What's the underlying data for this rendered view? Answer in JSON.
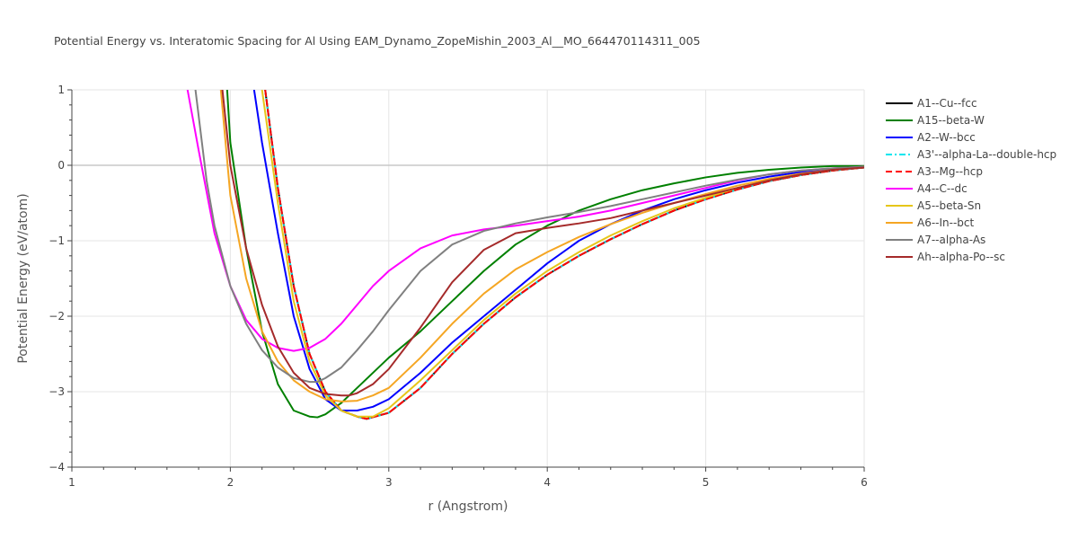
{
  "chart_data": {
    "type": "line",
    "title": "Potential Energy vs. Interatomic Spacing for Al Using EAM_Dynamo_ZopeMishin_2003_Al__MO_664470114311_005",
    "xlabel": "r (Angstrom)",
    "ylabel": "Potential Energy (eV/atom)",
    "xlim": [
      1,
      6
    ],
    "ylim": [
      -4,
      1
    ],
    "xticks": [
      1,
      2,
      3,
      4,
      5,
      6
    ],
    "yticks": [
      1,
      0,
      -1,
      -2,
      -3,
      -4
    ],
    "xtick_labels": [
      "1",
      "2",
      "3",
      "4",
      "5",
      "6"
    ],
    "ytick_labels": [
      "1",
      "0",
      "−1",
      "−2",
      "−3",
      "−4"
    ],
    "grid": true,
    "legend_position": "right",
    "series": [
      {
        "name": "A1--Cu--fcc",
        "color": "#000000",
        "dash": "solid",
        "x": [
          2.22,
          2.3,
          2.4,
          2.5,
          2.6,
          2.7,
          2.8,
          2.86,
          3.0,
          3.2,
          3.4,
          3.6,
          3.8,
          4.0,
          4.2,
          4.4,
          4.6,
          4.8,
          5.0,
          5.2,
          5.4,
          5.6,
          5.8,
          6.0
        ],
        "y": [
          1.0,
          -0.3,
          -1.6,
          -2.5,
          -3.0,
          -3.25,
          -3.33,
          -3.36,
          -3.28,
          -2.95,
          -2.5,
          -2.1,
          -1.75,
          -1.45,
          -1.2,
          -0.98,
          -0.78,
          -0.6,
          -0.45,
          -0.32,
          -0.21,
          -0.13,
          -0.07,
          -0.03
        ]
      },
      {
        "name": "A15--beta-W",
        "color": "#008000",
        "dash": "solid",
        "x": [
          1.98,
          2.0,
          2.1,
          2.2,
          2.3,
          2.4,
          2.5,
          2.55,
          2.6,
          2.7,
          2.8,
          3.0,
          3.2,
          3.4,
          3.6,
          3.8,
          4.0,
          4.2,
          4.4,
          4.6,
          4.8,
          5.0,
          5.2,
          5.4,
          5.6,
          5.8,
          6.0
        ],
        "y": [
          1.0,
          0.3,
          -1.1,
          -2.2,
          -2.9,
          -3.25,
          -3.33,
          -3.34,
          -3.3,
          -3.15,
          -2.95,
          -2.55,
          -2.2,
          -1.8,
          -1.4,
          -1.05,
          -0.8,
          -0.6,
          -0.45,
          -0.33,
          -0.24,
          -0.16,
          -0.1,
          -0.06,
          -0.03,
          -0.01,
          -0.01
        ]
      },
      {
        "name": "A2--W--bcc",
        "color": "#0000ff",
        "dash": "solid",
        "x": [
          2.15,
          2.2,
          2.3,
          2.4,
          2.5,
          2.6,
          2.7,
          2.8,
          2.9,
          3.0,
          3.2,
          3.4,
          3.6,
          3.8,
          4.0,
          4.2,
          4.4,
          4.6,
          4.8,
          5.0,
          5.2,
          5.4,
          5.6,
          5.8,
          6.0
        ],
        "y": [
          1.0,
          0.3,
          -0.9,
          -2.0,
          -2.7,
          -3.1,
          -3.25,
          -3.25,
          -3.2,
          -3.1,
          -2.75,
          -2.35,
          -2.0,
          -1.65,
          -1.3,
          -1.0,
          -0.78,
          -0.6,
          -0.45,
          -0.33,
          -0.23,
          -0.15,
          -0.09,
          -0.05,
          -0.02
        ]
      },
      {
        "name": "A3'--alpha-La--double-hcp",
        "color": "#00e5ee",
        "dash": "dashdot",
        "x": [
          2.22,
          2.3,
          2.4,
          2.5,
          2.6,
          2.7,
          2.8,
          2.86,
          3.0,
          3.2,
          3.4,
          3.6,
          3.8,
          4.0,
          4.2,
          4.4,
          4.6,
          4.8,
          5.0,
          5.2,
          5.4,
          5.6,
          5.8,
          6.0
        ],
        "y": [
          1.0,
          -0.3,
          -1.6,
          -2.5,
          -3.0,
          -3.25,
          -3.33,
          -3.36,
          -3.28,
          -2.95,
          -2.5,
          -2.1,
          -1.75,
          -1.45,
          -1.2,
          -0.98,
          -0.78,
          -0.6,
          -0.45,
          -0.32,
          -0.21,
          -0.13,
          -0.07,
          -0.03
        ]
      },
      {
        "name": "A3--Mg--hcp",
        "color": "#ff0000",
        "dash": "dash",
        "x": [
          2.22,
          2.3,
          2.4,
          2.5,
          2.6,
          2.7,
          2.8,
          2.86,
          3.0,
          3.2,
          3.4,
          3.6,
          3.8,
          4.0,
          4.2,
          4.4,
          4.6,
          4.8,
          5.0,
          5.2,
          5.4,
          5.6,
          5.8,
          6.0
        ],
        "y": [
          1.0,
          -0.3,
          -1.6,
          -2.5,
          -3.0,
          -3.25,
          -3.33,
          -3.36,
          -3.28,
          -2.95,
          -2.5,
          -2.1,
          -1.75,
          -1.45,
          -1.2,
          -0.98,
          -0.78,
          -0.6,
          -0.45,
          -0.32,
          -0.21,
          -0.13,
          -0.07,
          -0.03
        ]
      },
      {
        "name": "A4--C--dc",
        "color": "#ff00ff",
        "dash": "solid",
        "x": [
          1.73,
          1.8,
          1.9,
          2.0,
          2.1,
          2.2,
          2.3,
          2.4,
          2.5,
          2.6,
          2.7,
          2.8,
          2.9,
          3.0,
          3.2,
          3.4,
          3.6,
          3.8,
          4.0,
          4.2,
          4.4,
          4.6,
          4.8,
          5.0,
          5.2,
          5.4,
          5.6,
          5.8,
          6.0
        ],
        "y": [
          1.0,
          0.2,
          -0.9,
          -1.6,
          -2.05,
          -2.3,
          -2.42,
          -2.46,
          -2.42,
          -2.3,
          -2.1,
          -1.85,
          -1.6,
          -1.4,
          -1.1,
          -0.93,
          -0.85,
          -0.8,
          -0.74,
          -0.68,
          -0.6,
          -0.5,
          -0.4,
          -0.3,
          -0.2,
          -0.12,
          -0.07,
          -0.04,
          -0.02
        ]
      },
      {
        "name": "A5--beta-Sn",
        "color": "#e6c619",
        "dash": "solid",
        "x": [
          2.2,
          2.3,
          2.4,
          2.5,
          2.6,
          2.7,
          2.8,
          2.9,
          3.0,
          3.2,
          3.4,
          3.6,
          3.8,
          4.0,
          4.2,
          4.4,
          4.6,
          4.8,
          5.0,
          5.2,
          5.4,
          5.6,
          5.8,
          6.0
        ],
        "y": [
          1.0,
          -0.5,
          -1.8,
          -2.6,
          -3.05,
          -3.25,
          -3.33,
          -3.33,
          -3.22,
          -2.85,
          -2.45,
          -2.05,
          -1.7,
          -1.4,
          -1.15,
          -0.93,
          -0.74,
          -0.57,
          -0.43,
          -0.3,
          -0.2,
          -0.12,
          -0.06,
          -0.02
        ]
      },
      {
        "name": "A6--In--bct",
        "color": "#f5a623",
        "dash": "solid",
        "x": [
          1.94,
          2.0,
          2.1,
          2.2,
          2.3,
          2.4,
          2.5,
          2.6,
          2.7,
          2.8,
          2.9,
          3.0,
          3.2,
          3.4,
          3.6,
          3.8,
          4.0,
          4.2,
          4.4,
          4.6,
          4.8,
          5.0,
          5.2,
          5.4,
          5.6,
          5.8,
          6.0
        ],
        "y": [
          1.0,
          -0.4,
          -1.5,
          -2.2,
          -2.6,
          -2.85,
          -3.0,
          -3.1,
          -3.13,
          -3.12,
          -3.05,
          -2.95,
          -2.55,
          -2.1,
          -1.7,
          -1.38,
          -1.15,
          -0.95,
          -0.78,
          -0.63,
          -0.5,
          -0.38,
          -0.27,
          -0.18,
          -0.11,
          -0.06,
          -0.03
        ]
      },
      {
        "name": "A7--alpha-As",
        "color": "#808080",
        "dash": "solid",
        "x": [
          1.78,
          1.85,
          1.9,
          2.0,
          2.1,
          2.2,
          2.3,
          2.4,
          2.5,
          2.55,
          2.6,
          2.7,
          2.8,
          2.9,
          3.0,
          3.2,
          3.4,
          3.6,
          3.8,
          4.0,
          4.2,
          4.4,
          4.6,
          4.8,
          5.0,
          5.2,
          5.4,
          5.6,
          5.8,
          6.0
        ],
        "y": [
          1.0,
          -0.2,
          -0.8,
          -1.6,
          -2.1,
          -2.45,
          -2.68,
          -2.82,
          -2.87,
          -2.87,
          -2.82,
          -2.68,
          -2.45,
          -2.2,
          -1.92,
          -1.4,
          -1.05,
          -0.87,
          -0.77,
          -0.69,
          -0.62,
          -0.54,
          -0.45,
          -0.36,
          -0.27,
          -0.19,
          -0.12,
          -0.07,
          -0.04,
          -0.02
        ]
      },
      {
        "name": "Ah--alpha-Po--sc",
        "color": "#a52a2a",
        "dash": "solid",
        "x": [
          1.95,
          2.0,
          2.1,
          2.2,
          2.3,
          2.4,
          2.5,
          2.6,
          2.7,
          2.75,
          2.8,
          2.9,
          3.0,
          3.2,
          3.4,
          3.6,
          3.8,
          4.0,
          4.2,
          4.4,
          4.6,
          4.8,
          5.0,
          5.2,
          5.4,
          5.6,
          5.8,
          6.0
        ],
        "y": [
          1.0,
          0.0,
          -1.1,
          -1.85,
          -2.4,
          -2.75,
          -2.95,
          -3.03,
          -3.05,
          -3.05,
          -3.02,
          -2.9,
          -2.7,
          -2.15,
          -1.55,
          -1.12,
          -0.9,
          -0.83,
          -0.77,
          -0.7,
          -0.6,
          -0.5,
          -0.4,
          -0.3,
          -0.2,
          -0.12,
          -0.06,
          -0.03
        ]
      }
    ]
  }
}
